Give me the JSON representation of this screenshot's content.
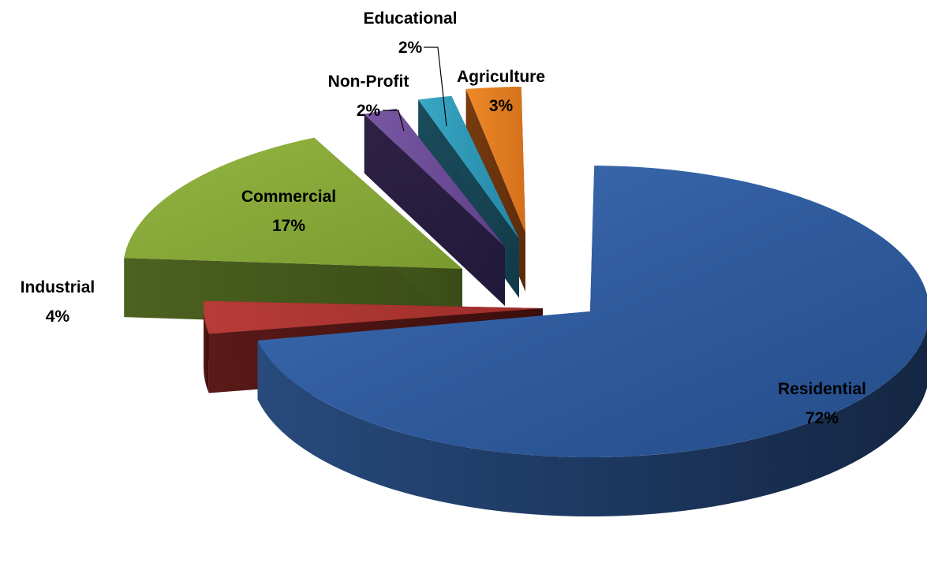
{
  "chart_data": {
    "type": "pie",
    "style": "3d-exploded",
    "legend": "none",
    "data_labels": "category-and-percent",
    "slices": [
      {
        "category": "Residential",
        "value": 72,
        "label": "72%",
        "color": "#3a64a4"
      },
      {
        "category": "Industrial",
        "value": 4,
        "label": "4%",
        "color": "#b13a36"
      },
      {
        "category": "Commercial",
        "value": 17,
        "label": "17%",
        "color": "#8aac3a"
      },
      {
        "category": "Non-Profit",
        "value": 2,
        "label": "2%",
        "color": "#6a4c94"
      },
      {
        "category": "Educational",
        "value": 2,
        "label": "2%",
        "color": "#2e9ab8"
      },
      {
        "category": "Agriculture",
        "value": 3,
        "label": "3%",
        "color": "#e8801e"
      }
    ]
  }
}
